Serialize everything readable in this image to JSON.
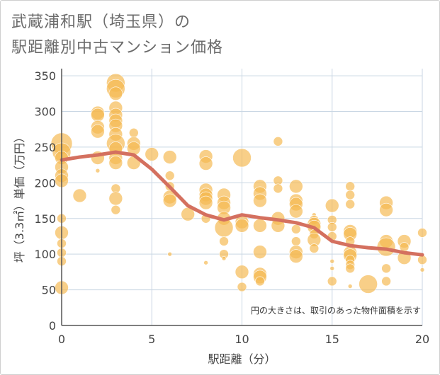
{
  "chart_data": {
    "type": "scatter",
    "title_lines": [
      "武蔵浦和駅（埼玉県）の",
      "駅距離別中古マンション価格"
    ],
    "xlabel": "駅距離（分）",
    "ylabel": "坪（3.3㎡）単価（万円）",
    "xlim": [
      0,
      20
    ],
    "ylim": [
      0,
      360
    ],
    "x_ticks": [
      "0",
      "5",
      "10",
      "15",
      "20"
    ],
    "y_ticks": [
      "0",
      "50",
      "100",
      "150",
      "200",
      "250",
      "300",
      "350"
    ],
    "grid": true,
    "annotation": "円の大きさは、取引のあった物件面積を示す",
    "colors": {
      "bubble": "#f5b84f",
      "trend": "#d4705f",
      "grid": "#c9d6e3",
      "axis": "#555555"
    },
    "trend_line": {
      "x": [
        0,
        1,
        2,
        3,
        4,
        5,
        6,
        7,
        8,
        9,
        10,
        11,
        12,
        13,
        14,
        15,
        16,
        17,
        18,
        19,
        20
      ],
      "y": [
        232,
        236,
        239,
        243,
        239,
        219,
        194,
        168,
        155,
        148,
        155,
        151,
        148,
        144,
        137,
        118,
        112,
        109,
        107,
        102,
        99
      ]
    },
    "bubbles": [
      {
        "x": 0,
        "y": 255,
        "s": 5
      },
      {
        "x": 0,
        "y": 243,
        "s": 4
      },
      {
        "x": 0,
        "y": 235,
        "s": 3
      },
      {
        "x": 0,
        "y": 222,
        "s": 3
      },
      {
        "x": 0,
        "y": 210,
        "s": 3
      },
      {
        "x": 0,
        "y": 203,
        "s": 3
      },
      {
        "x": 0,
        "y": 150,
        "s": 2
      },
      {
        "x": 0,
        "y": 130,
        "s": 3
      },
      {
        "x": 0,
        "y": 115,
        "s": 2
      },
      {
        "x": 0,
        "y": 102,
        "s": 2
      },
      {
        "x": 0,
        "y": 90,
        "s": 2
      },
      {
        "x": 0,
        "y": 53,
        "s": 3
      },
      {
        "x": 1,
        "y": 182,
        "s": 3
      },
      {
        "x": 2,
        "y": 298,
        "s": 3
      },
      {
        "x": 2,
        "y": 295,
        "s": 3
      },
      {
        "x": 2,
        "y": 278,
        "s": 3
      },
      {
        "x": 2,
        "y": 272,
        "s": 3
      },
      {
        "x": 2,
        "y": 235,
        "s": 3
      },
      {
        "x": 2,
        "y": 217,
        "s": 1
      },
      {
        "x": 3,
        "y": 340,
        "s": 4
      },
      {
        "x": 3,
        "y": 332,
        "s": 4
      },
      {
        "x": 3,
        "y": 325,
        "s": 3
      },
      {
        "x": 3,
        "y": 305,
        "s": 3
      },
      {
        "x": 3,
        "y": 295,
        "s": 3
      },
      {
        "x": 3,
        "y": 287,
        "s": 3
      },
      {
        "x": 3,
        "y": 280,
        "s": 3
      },
      {
        "x": 3,
        "y": 268,
        "s": 3
      },
      {
        "x": 3,
        "y": 255,
        "s": 4
      },
      {
        "x": 3,
        "y": 248,
        "s": 3
      },
      {
        "x": 3,
        "y": 235,
        "s": 3
      },
      {
        "x": 3,
        "y": 228,
        "s": 3
      },
      {
        "x": 3,
        "y": 192,
        "s": 2
      },
      {
        "x": 3,
        "y": 178,
        "s": 3
      },
      {
        "x": 3,
        "y": 162,
        "s": 2
      },
      {
        "x": 4,
        "y": 270,
        "s": 2
      },
      {
        "x": 4,
        "y": 255,
        "s": 3
      },
      {
        "x": 4,
        "y": 248,
        "s": 3
      },
      {
        "x": 4,
        "y": 228,
        "s": 3
      },
      {
        "x": 5,
        "y": 240,
        "s": 3
      },
      {
        "x": 6,
        "y": 236,
        "s": 3
      },
      {
        "x": 6,
        "y": 210,
        "s": 2
      },
      {
        "x": 6,
        "y": 195,
        "s": 2
      },
      {
        "x": 6,
        "y": 180,
        "s": 3
      },
      {
        "x": 6,
        "y": 175,
        "s": 3
      },
      {
        "x": 6,
        "y": 100,
        "s": 1
      },
      {
        "x": 7,
        "y": 156,
        "s": 3
      },
      {
        "x": 8,
        "y": 237,
        "s": 3
      },
      {
        "x": 8,
        "y": 227,
        "s": 3
      },
      {
        "x": 8,
        "y": 190,
        "s": 3
      },
      {
        "x": 8,
        "y": 183,
        "s": 3
      },
      {
        "x": 8,
        "y": 178,
        "s": 3
      },
      {
        "x": 8,
        "y": 172,
        "s": 3
      },
      {
        "x": 8,
        "y": 150,
        "s": 2
      },
      {
        "x": 8,
        "y": 88,
        "s": 1
      },
      {
        "x": 9,
        "y": 183,
        "s": 3
      },
      {
        "x": 9,
        "y": 172,
        "s": 3
      },
      {
        "x": 9,
        "y": 165,
        "s": 3
      },
      {
        "x": 9,
        "y": 150,
        "s": 3
      },
      {
        "x": 9,
        "y": 137,
        "s": 4
      },
      {
        "x": 9,
        "y": 118,
        "s": 2
      },
      {
        "x": 9,
        "y": 100,
        "s": 2
      },
      {
        "x": 9,
        "y": 94,
        "s": 1
      },
      {
        "x": 10,
        "y": 235,
        "s": 4
      },
      {
        "x": 10,
        "y": 145,
        "s": 3
      },
      {
        "x": 10,
        "y": 140,
        "s": 3
      },
      {
        "x": 10,
        "y": 75,
        "s": 3
      },
      {
        "x": 10,
        "y": 54,
        "s": 2
      },
      {
        "x": 11,
        "y": 195,
        "s": 3
      },
      {
        "x": 11,
        "y": 185,
        "s": 3
      },
      {
        "x": 11,
        "y": 175,
        "s": 3
      },
      {
        "x": 11,
        "y": 140,
        "s": 3
      },
      {
        "x": 11,
        "y": 103,
        "s": 3
      },
      {
        "x": 11,
        "y": 72,
        "s": 3
      },
      {
        "x": 11,
        "y": 68,
        "s": 3
      },
      {
        "x": 11,
        "y": 62,
        "s": 2
      },
      {
        "x": 12,
        "y": 258,
        "s": 2
      },
      {
        "x": 12,
        "y": 203,
        "s": 2
      },
      {
        "x": 12,
        "y": 192,
        "s": 2
      },
      {
        "x": 12,
        "y": 150,
        "s": 3
      },
      {
        "x": 12,
        "y": 140,
        "s": 3
      },
      {
        "x": 13,
        "y": 195,
        "s": 3
      },
      {
        "x": 13,
        "y": 175,
        "s": 3
      },
      {
        "x": 13,
        "y": 170,
        "s": 3
      },
      {
        "x": 13,
        "y": 160,
        "s": 3
      },
      {
        "x": 13,
        "y": 135,
        "s": 2
      },
      {
        "x": 13,
        "y": 118,
        "s": 2
      },
      {
        "x": 13,
        "y": 103,
        "s": 3
      },
      {
        "x": 13,
        "y": 97,
        "s": 3
      },
      {
        "x": 14,
        "y": 155,
        "s": 1
      },
      {
        "x": 14,
        "y": 148,
        "s": 2
      },
      {
        "x": 14,
        "y": 142,
        "s": 3
      },
      {
        "x": 14,
        "y": 138,
        "s": 3
      },
      {
        "x": 14,
        "y": 128,
        "s": 2
      },
      {
        "x": 14,
        "y": 120,
        "s": 3
      },
      {
        "x": 14,
        "y": 108,
        "s": 2
      },
      {
        "x": 15,
        "y": 168,
        "s": 3
      },
      {
        "x": 15,
        "y": 148,
        "s": 2
      },
      {
        "x": 15,
        "y": 138,
        "s": 2
      },
      {
        "x": 15,
        "y": 125,
        "s": 2
      },
      {
        "x": 15,
        "y": 90,
        "s": 1
      },
      {
        "x": 15,
        "y": 80,
        "s": 1
      },
      {
        "x": 15,
        "y": 62,
        "s": 2
      },
      {
        "x": 16,
        "y": 195,
        "s": 2
      },
      {
        "x": 16,
        "y": 183,
        "s": 2
      },
      {
        "x": 16,
        "y": 170,
        "s": 2
      },
      {
        "x": 16,
        "y": 132,
        "s": 3
      },
      {
        "x": 16,
        "y": 128,
        "s": 3
      },
      {
        "x": 16,
        "y": 118,
        "s": 2
      },
      {
        "x": 16,
        "y": 102,
        "s": 3
      },
      {
        "x": 16,
        "y": 98,
        "s": 3
      },
      {
        "x": 16,
        "y": 92,
        "s": 2
      },
      {
        "x": 16,
        "y": 85,
        "s": 2
      },
      {
        "x": 16,
        "y": 80,
        "s": 2
      },
      {
        "x": 16,
        "y": 55,
        "s": 1
      },
      {
        "x": 17,
        "y": 58,
        "s": 4
      },
      {
        "x": 18,
        "y": 172,
        "s": 3
      },
      {
        "x": 18,
        "y": 162,
        "s": 3
      },
      {
        "x": 18,
        "y": 118,
        "s": 3
      },
      {
        "x": 18,
        "y": 110,
        "s": 4
      },
      {
        "x": 18,
        "y": 80,
        "s": 2
      },
      {
        "x": 18,
        "y": 62,
        "s": 2
      },
      {
        "x": 19,
        "y": 118,
        "s": 3
      },
      {
        "x": 19,
        "y": 110,
        "s": 2
      },
      {
        "x": 19,
        "y": 95,
        "s": 3
      },
      {
        "x": 20,
        "y": 130,
        "s": 2
      },
      {
        "x": 20,
        "y": 92,
        "s": 2
      },
      {
        "x": 20,
        "y": 78,
        "s": 1
      }
    ]
  }
}
